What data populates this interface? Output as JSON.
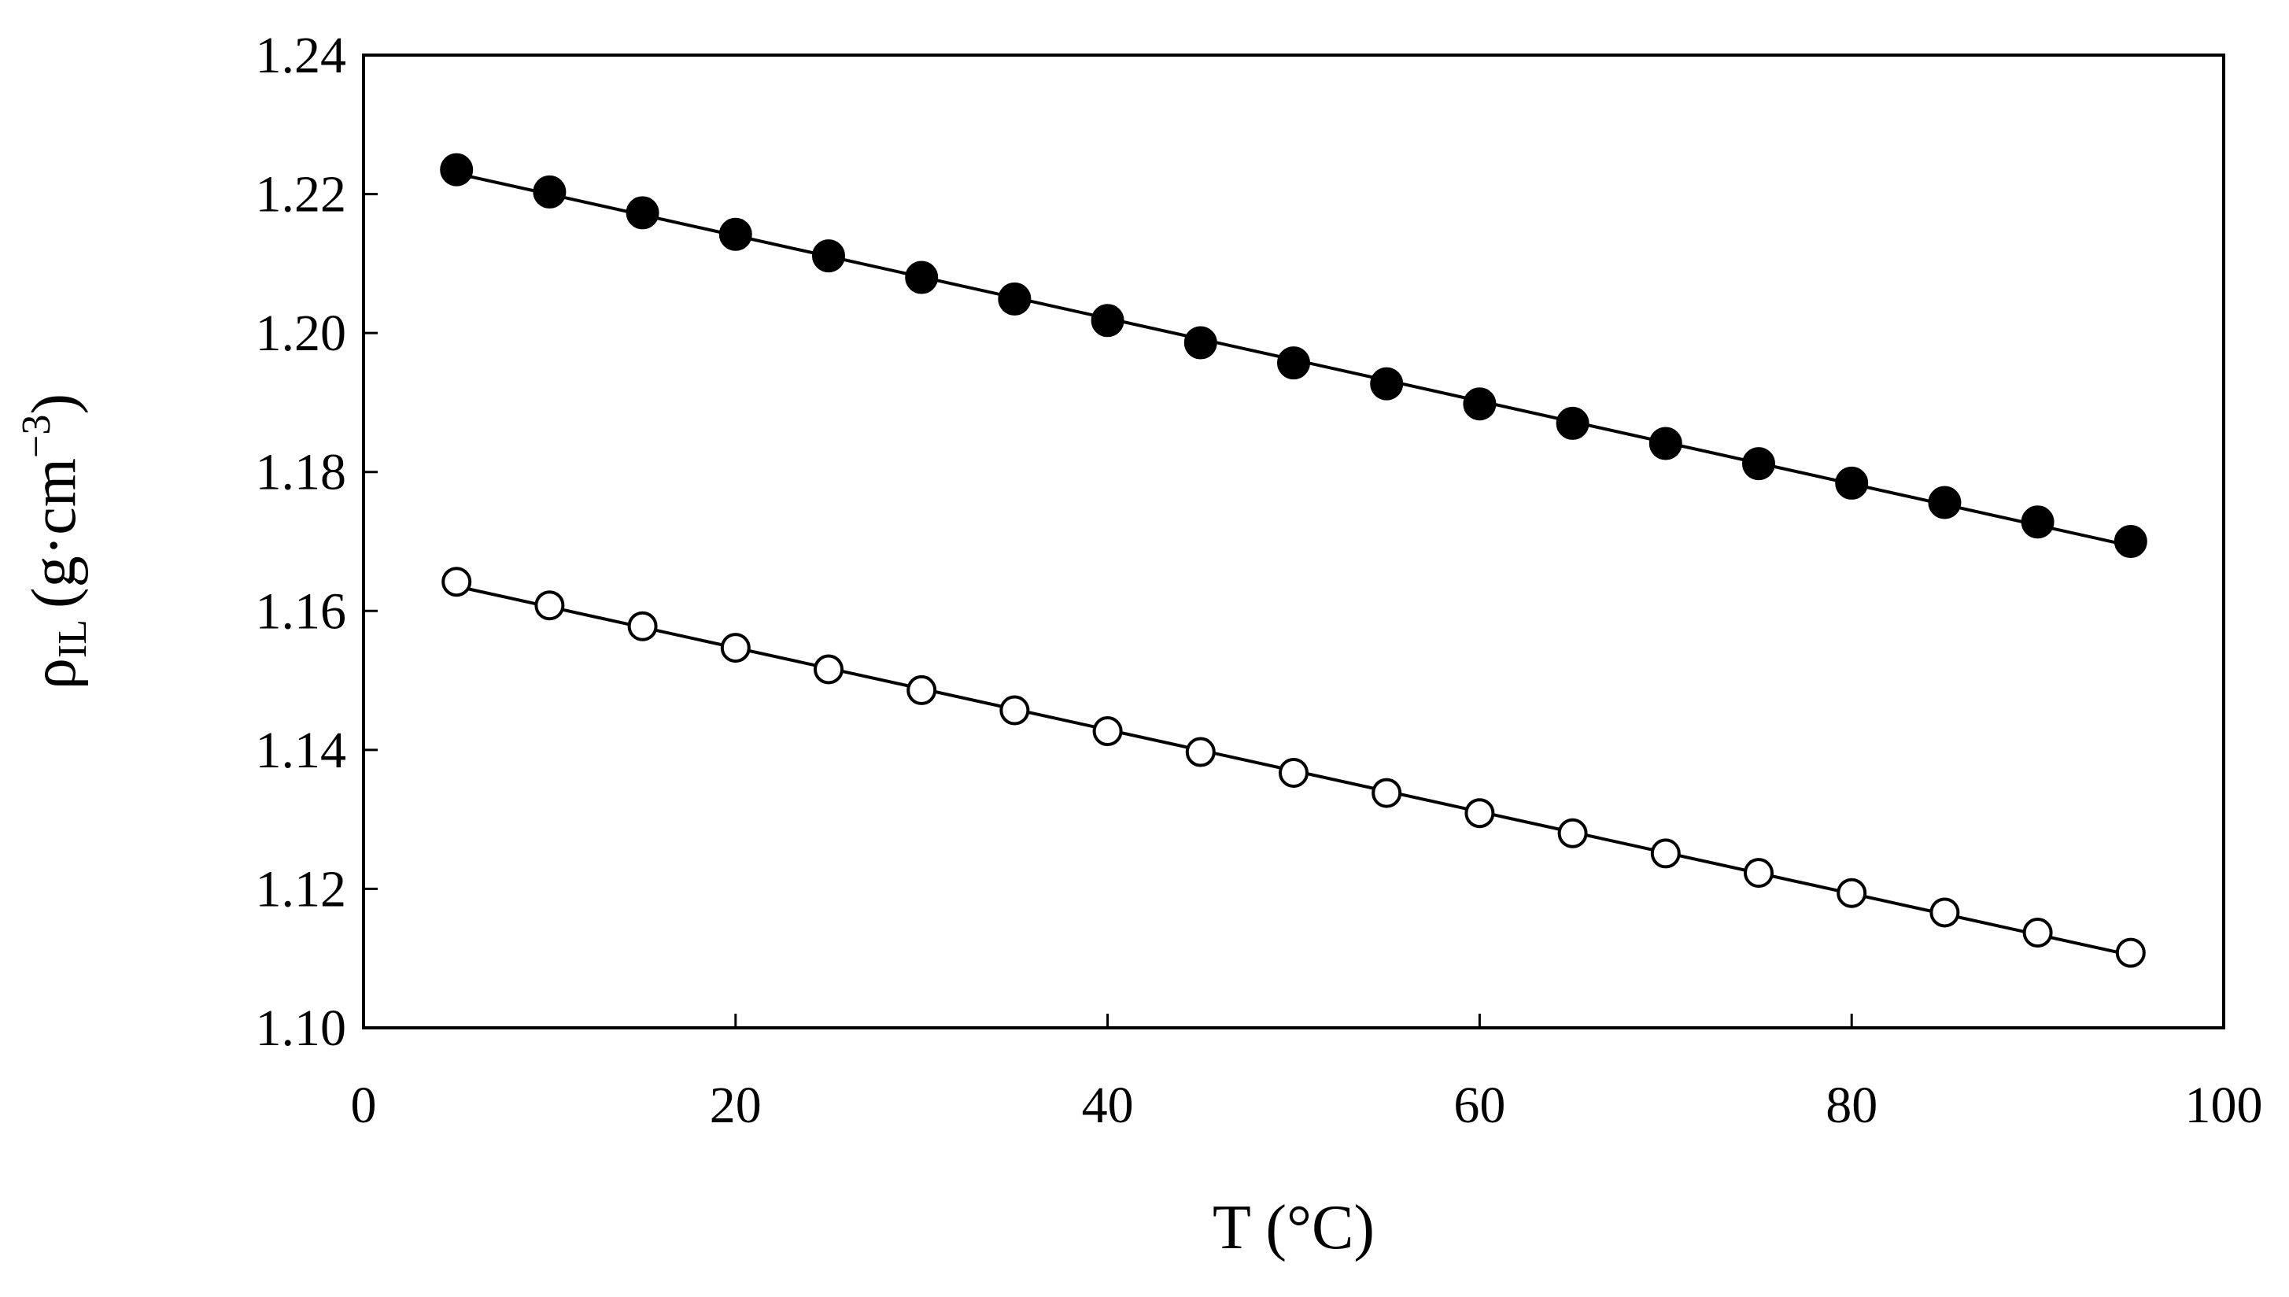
{
  "chart_data": {
    "type": "scatter",
    "xlabel": "T (°C)",
    "ylabel": {
      "symbol": "ρ",
      "subscript": "IL",
      "unit_prefix": "(g·cm",
      "unit_exponent": "−3",
      "unit_suffix": ")"
    },
    "xlim": [
      0,
      100
    ],
    "ylim": [
      1.1,
      1.24
    ],
    "x_ticks": [
      "0",
      "20",
      "40",
      "60",
      "80",
      "100"
    ],
    "y_ticks": [
      "1.10",
      "1.12",
      "1.14",
      "1.16",
      "1.18",
      "1.20",
      "1.22",
      "1.24"
    ],
    "grid": false,
    "legend": "none",
    "series": [
      {
        "marker": "filled-circle",
        "color": "#000000",
        "fit_line": true,
        "x": [
          5,
          10,
          15,
          20,
          25,
          30,
          35,
          40,
          45,
          50,
          55,
          60,
          65,
          70,
          75,
          80,
          85,
          90,
          95
        ],
        "y": [
          1.2235,
          1.2203,
          1.2173,
          1.2142,
          1.2111,
          1.208,
          1.2049,
          1.2018,
          1.1986,
          1.1957,
          1.1927,
          1.1898,
          1.187,
          1.1841,
          1.1812,
          1.1784,
          1.1756,
          1.1728,
          1.17
        ]
      },
      {
        "marker": "open-circle",
        "color": "#000000",
        "fit_line": true,
        "x": [
          5,
          10,
          15,
          20,
          25,
          30,
          35,
          40,
          45,
          50,
          55,
          60,
          65,
          70,
          75,
          80,
          85,
          90,
          95
        ],
        "y": [
          1.1642,
          1.1608,
          1.1578,
          1.1547,
          1.1516,
          1.1486,
          1.1457,
          1.1427,
          1.1397,
          1.1367,
          1.1338,
          1.1309,
          1.128,
          1.1251,
          1.1223,
          1.1194,
          1.1166,
          1.1137,
          1.1108
        ]
      }
    ]
  }
}
